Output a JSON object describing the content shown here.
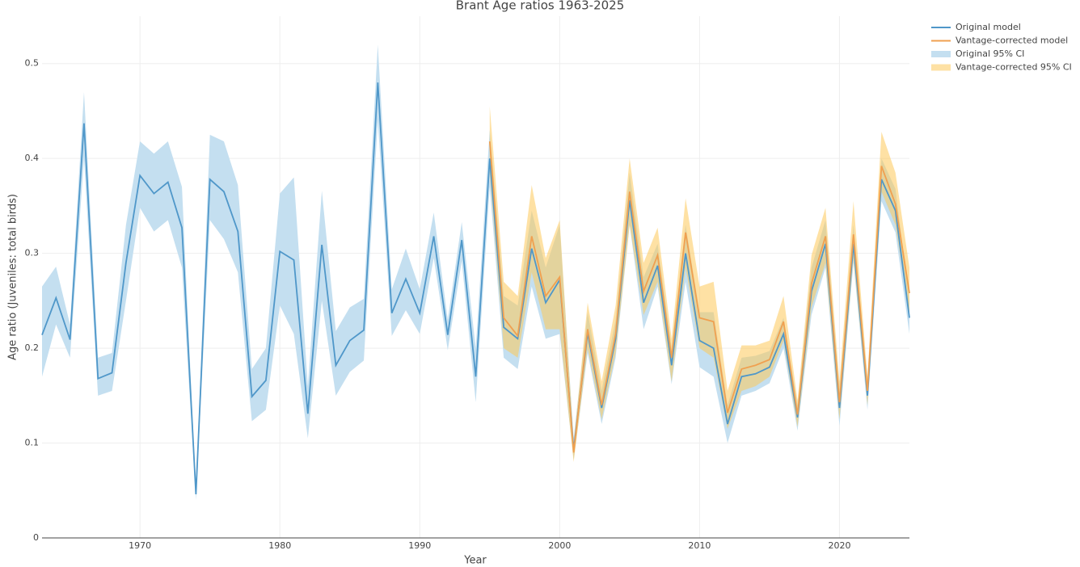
{
  "chart_data": {
    "type": "line",
    "title": "Brant Age ratios 1963-2025",
    "x_label": "Year",
    "y_label": "Age ratio (Juveniles: total birds)",
    "x": [
      1963,
      1964,
      1965,
      1966,
      1967,
      1968,
      1969,
      1970,
      1971,
      1972,
      1973,
      1974,
      1975,
      1976,
      1977,
      1978,
      1979,
      1980,
      1981,
      1982,
      1983,
      1984,
      1985,
      1986,
      1987,
      1988,
      1989,
      1990,
      1991,
      1992,
      1993,
      1994,
      1995,
      1996,
      1997,
      1998,
      1999,
      2000,
      2001,
      2002,
      2003,
      2004,
      2005,
      2006,
      2007,
      2008,
      2009,
      2010,
      2011,
      2012,
      2013,
      2014,
      2015,
      2016,
      2017,
      2018,
      2019,
      2020,
      2021,
      2022,
      2023,
      2024,
      2025
    ],
    "bands": [
      {
        "name": "Original 95% CI",
        "color": "#c4dff0",
        "lower": [
          0.17,
          0.225,
          0.19,
          0.4,
          0.15,
          0.155,
          0.25,
          0.348,
          0.323,
          0.335,
          0.285,
          0.04,
          0.335,
          0.315,
          0.28,
          0.123,
          0.135,
          0.245,
          0.215,
          0.105,
          0.25,
          0.15,
          0.175,
          0.187,
          0.44,
          0.213,
          0.24,
          0.215,
          0.295,
          0.198,
          0.292,
          0.143,
          0.37,
          0.19,
          0.178,
          0.265,
          0.21,
          0.215,
          0.082,
          0.195,
          0.12,
          0.19,
          0.33,
          0.22,
          0.265,
          0.162,
          0.27,
          0.18,
          0.17,
          0.1,
          0.15,
          0.155,
          0.163,
          0.2,
          0.113,
          0.235,
          0.285,
          0.118,
          0.29,
          0.135,
          0.355,
          0.322,
          0.215
        ],
        "upper": [
          0.265,
          0.286,
          0.225,
          0.47,
          0.19,
          0.195,
          0.33,
          0.418,
          0.405,
          0.418,
          0.37,
          0.05,
          0.425,
          0.418,
          0.372,
          0.178,
          0.2,
          0.363,
          0.38,
          0.16,
          0.366,
          0.218,
          0.243,
          0.252,
          0.52,
          0.262,
          0.305,
          0.262,
          0.343,
          0.23,
          0.333,
          0.2,
          0.43,
          0.255,
          0.245,
          0.345,
          0.285,
          0.33,
          0.105,
          0.238,
          0.155,
          0.23,
          0.385,
          0.275,
          0.31,
          0.2,
          0.33,
          0.238,
          0.238,
          0.14,
          0.19,
          0.192,
          0.197,
          0.232,
          0.14,
          0.285,
          0.335,
          0.157,
          0.33,
          0.165,
          0.4,
          0.368,
          0.25
        ]
      },
      {
        "name": "Vantage-corrected 95% CI",
        "color": "rgba(253,200,90,0.55)",
        "lower": [
          null,
          null,
          null,
          null,
          null,
          null,
          null,
          null,
          null,
          null,
          null,
          null,
          null,
          null,
          null,
          null,
          null,
          null,
          null,
          null,
          null,
          null,
          null,
          null,
          null,
          null,
          null,
          null,
          null,
          null,
          null,
          null,
          0.385,
          0.2,
          0.19,
          0.28,
          0.22,
          0.22,
          0.08,
          0.2,
          0.125,
          0.195,
          0.33,
          0.235,
          0.27,
          0.165,
          0.285,
          0.2,
          0.19,
          0.115,
          0.155,
          0.16,
          0.17,
          0.208,
          0.117,
          0.243,
          0.29,
          0.125,
          0.295,
          0.14,
          0.365,
          0.33,
          0.235
        ],
        "upper": [
          null,
          null,
          null,
          null,
          null,
          null,
          null,
          null,
          null,
          null,
          null,
          null,
          null,
          null,
          null,
          null,
          null,
          null,
          null,
          null,
          null,
          null,
          null,
          null,
          null,
          null,
          null,
          null,
          null,
          null,
          null,
          null,
          0.455,
          0.27,
          0.255,
          0.372,
          0.295,
          0.335,
          0.1,
          0.248,
          0.165,
          0.245,
          0.4,
          0.29,
          0.327,
          0.21,
          0.358,
          0.265,
          0.27,
          0.155,
          0.203,
          0.203,
          0.208,
          0.255,
          0.145,
          0.298,
          0.348,
          0.165,
          0.355,
          0.17,
          0.428,
          0.385,
          0.285
        ]
      }
    ],
    "series": [
      {
        "name": "Original model",
        "color": "#4f97c9",
        "values": [
          0.214,
          0.253,
          0.209,
          0.437,
          0.168,
          0.174,
          0.29,
          0.382,
          0.363,
          0.375,
          0.327,
          0.046,
          0.378,
          0.365,
          0.323,
          0.149,
          0.166,
          0.302,
          0.293,
          0.131,
          0.309,
          0.182,
          0.208,
          0.219,
          0.48,
          0.237,
          0.273,
          0.237,
          0.318,
          0.214,
          0.314,
          0.17,
          0.4,
          0.222,
          0.21,
          0.305,
          0.248,
          0.272,
          0.093,
          0.216,
          0.137,
          0.21,
          0.356,
          0.248,
          0.287,
          0.182,
          0.3,
          0.208,
          0.2,
          0.12,
          0.17,
          0.173,
          0.18,
          0.215,
          0.127,
          0.26,
          0.31,
          0.137,
          0.31,
          0.15,
          0.378,
          0.345,
          0.232
        ]
      },
      {
        "name": "Vantage-corrected model",
        "color": "#f0a050",
        "values": [
          null,
          null,
          null,
          null,
          null,
          null,
          null,
          null,
          null,
          null,
          null,
          null,
          null,
          null,
          null,
          null,
          null,
          null,
          null,
          null,
          null,
          null,
          null,
          null,
          null,
          null,
          null,
          null,
          null,
          null,
          null,
          null,
          0.418,
          0.232,
          0.213,
          0.318,
          0.255,
          0.275,
          0.09,
          0.22,
          0.14,
          0.215,
          0.365,
          0.26,
          0.298,
          0.19,
          0.322,
          0.232,
          0.228,
          0.132,
          0.178,
          0.182,
          0.188,
          0.228,
          0.13,
          0.268,
          0.318,
          0.143,
          0.32,
          0.155,
          0.392,
          0.352,
          0.258
        ]
      }
    ],
    "xlim": [
      1963,
      2025
    ],
    "ylim": [
      0,
      0.55
    ],
    "xticks": [
      1970,
      1980,
      1990,
      2000,
      2010,
      2020
    ],
    "yticks": [
      0,
      0.1,
      0.2,
      0.3,
      0.4,
      0.5
    ],
    "grid": true
  }
}
